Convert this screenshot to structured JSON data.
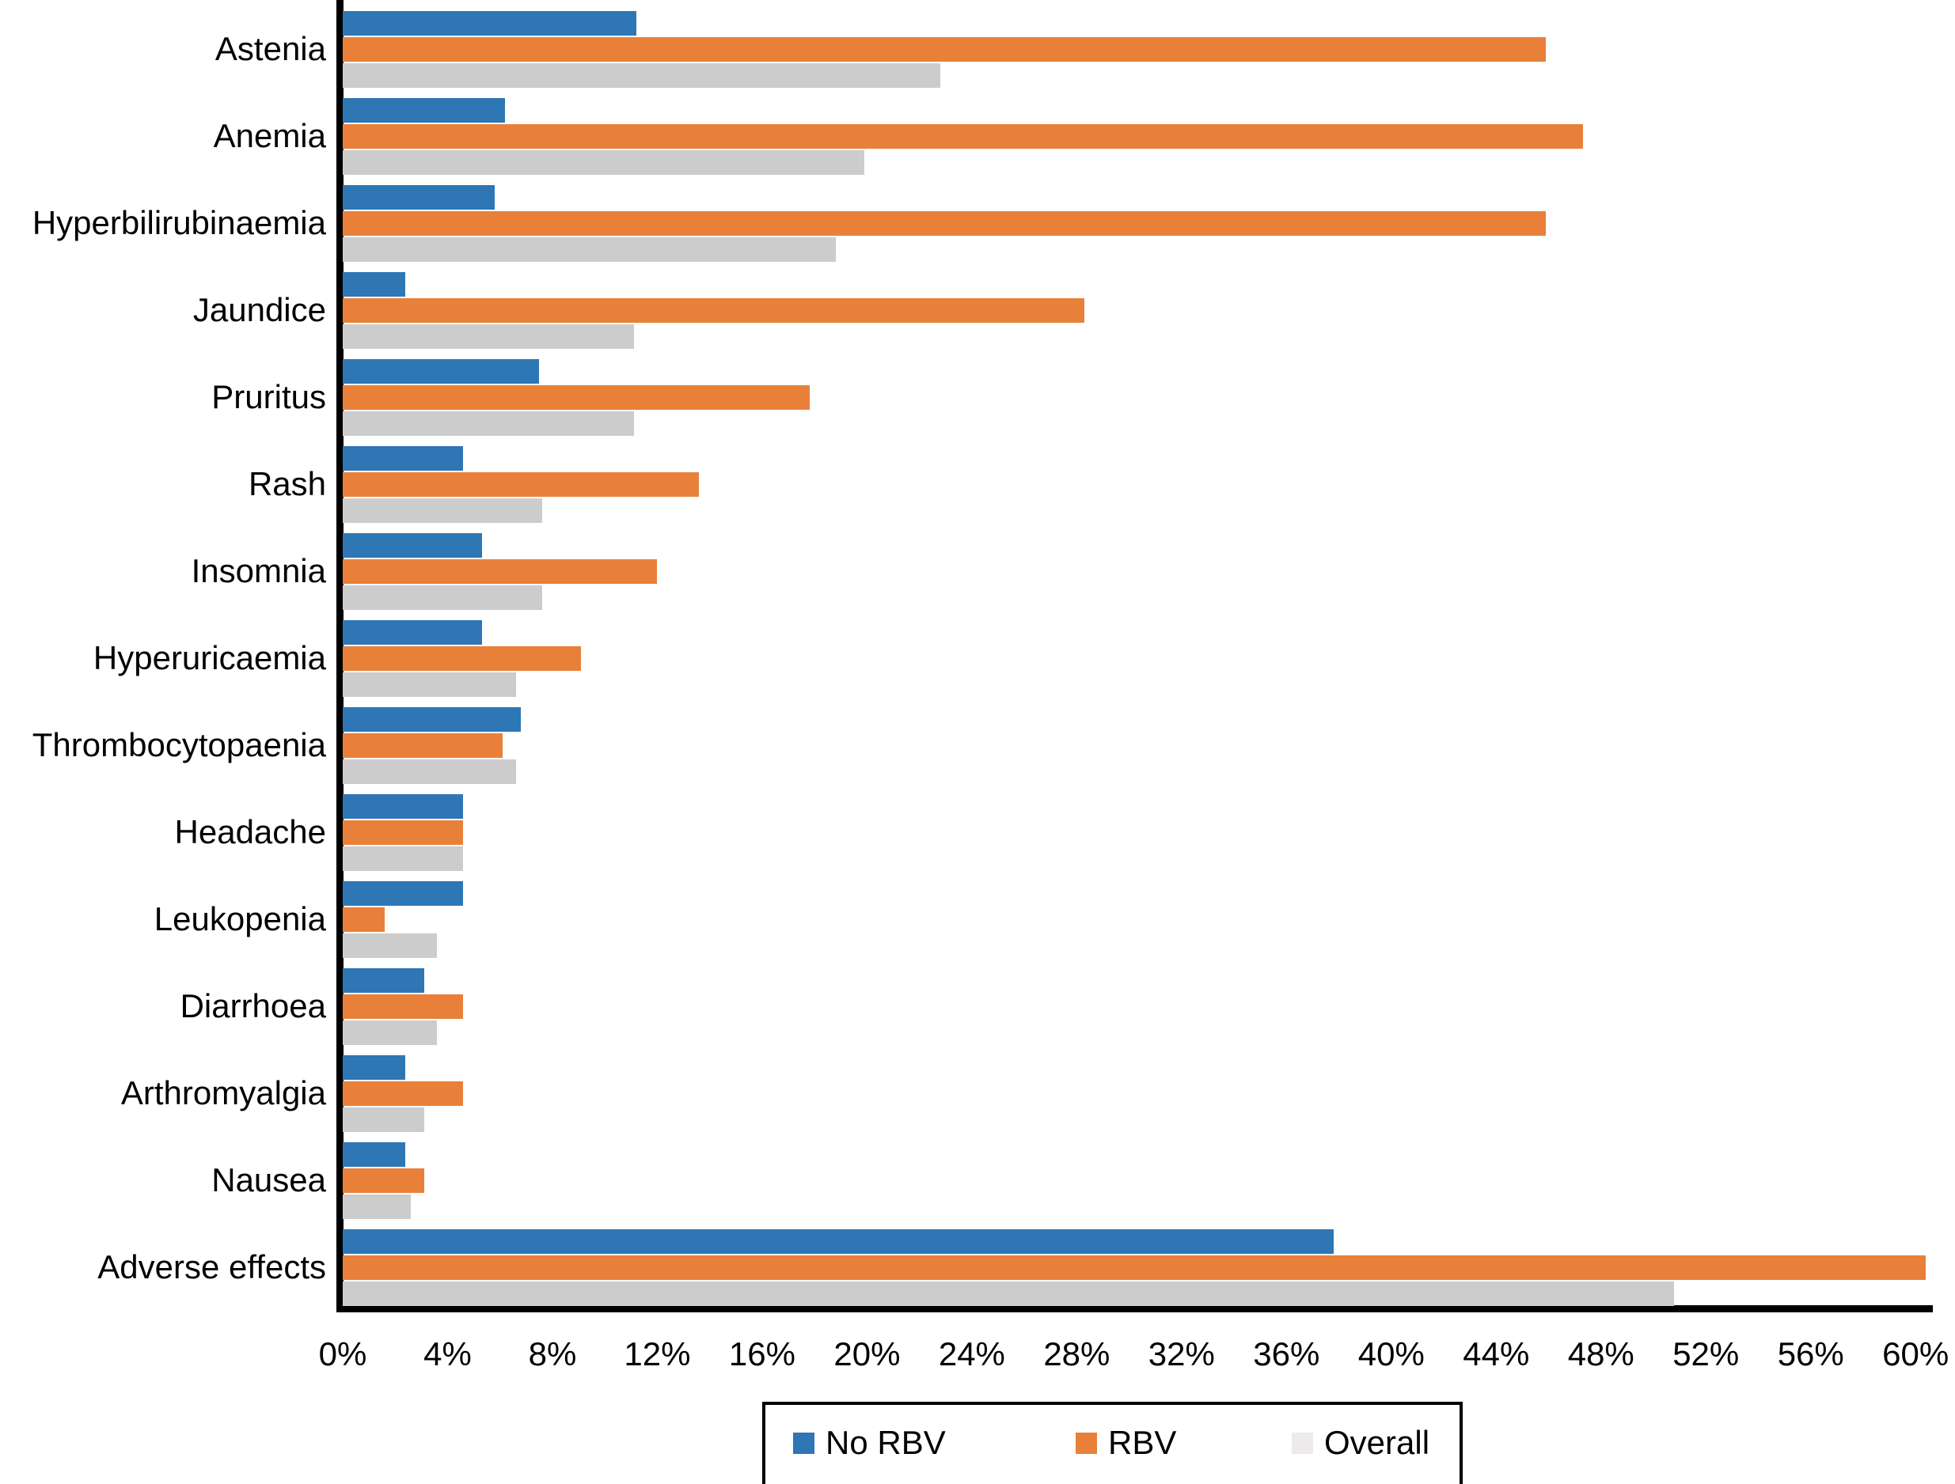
{
  "chart_data": {
    "type": "bar",
    "orientation": "horizontal",
    "title": "",
    "xlabel": "",
    "ylabel": "",
    "grid": false,
    "categories": [
      "Astenia",
      "Anemia",
      "Hyperbilirubinaemia",
      "Jaundice",
      "Pruritus",
      "Rash",
      "Insomnia",
      "Hyperuricaemia",
      "Thrombocytopaenia",
      "Headache",
      "Leukopenia",
      "Diarrhoea",
      "Arthromyalgia",
      "Nausea",
      "Adverse effects"
    ],
    "series": [
      {
        "name": "No RBV",
        "color": "#2F76B5",
        "legend_color": "#2F76B5",
        "values": [
          11.2,
          6.2,
          5.8,
          2.4,
          7.5,
          4.6,
          5.3,
          5.3,
          6.8,
          4.6,
          4.6,
          3.1,
          2.4,
          2.4,
          37.8
        ]
      },
      {
        "name": "RBV",
        "color": "#E8803A",
        "legend_color": "#E8803A",
        "values": [
          45.9,
          47.3,
          45.9,
          28.3,
          17.8,
          13.6,
          12.0,
          9.1,
          6.1,
          4.6,
          1.6,
          4.6,
          4.6,
          3.1,
          60.4
        ]
      },
      {
        "name": "Overall",
        "color": "#CCCCCC",
        "legend_color": "#ECEAEA",
        "values": [
          22.8,
          19.9,
          18.8,
          11.1,
          11.1,
          7.6,
          7.6,
          6.6,
          6.6,
          4.6,
          3.6,
          3.6,
          3.1,
          2.6,
          50.8
        ]
      }
    ],
    "x_axis": {
      "min": 0,
      "max": 60,
      "step": 4,
      "tick_suffix": "%",
      "tick_labels": [
        "0%",
        "4%",
        "8%",
        "12%",
        "16%",
        "20%",
        "24%",
        "28%",
        "32%",
        "36%",
        "40%",
        "44%",
        "48%",
        "52%",
        "56%",
        "60%"
      ]
    },
    "legend": {
      "position": "bottom",
      "items": [
        "No RBV",
        "RBV",
        "Overall"
      ]
    }
  }
}
